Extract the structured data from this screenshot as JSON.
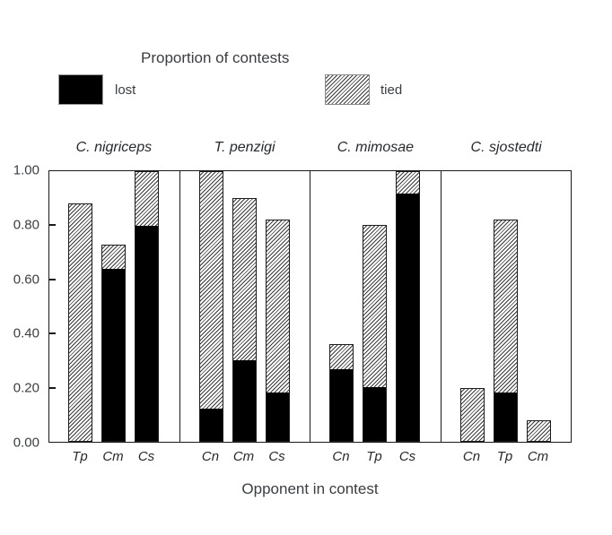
{
  "chart_data": {
    "type": "bar",
    "stacked": true,
    "title": "Proportion of contests",
    "xlabel": "Opponent in contest",
    "ylabel": "Proportion of contests",
    "ylim": [
      0,
      1
    ],
    "yticks": [
      0.0,
      0.2,
      0.4,
      0.6,
      0.8,
      1.0
    ],
    "ytick_labels": [
      "0.00",
      "0.20",
      "0.40",
      "0.60",
      "0.80",
      "1.00"
    ],
    "grid": false,
    "legend_position": "top",
    "legend": [
      {
        "label": "lost",
        "style": "solid",
        "color": "#000000"
      },
      {
        "label": "tied",
        "style": "diagonal-hatch",
        "color": "#ffffff"
      }
    ],
    "panels": [
      {
        "title": "C. nigriceps",
        "bars": [
          {
            "opponent": "Tp",
            "lost": 0.0,
            "tied": 0.88
          },
          {
            "opponent": "Cm",
            "lost": 0.64,
            "tied": 0.09
          },
          {
            "opponent": "Cs",
            "lost": 0.8,
            "tied": 0.2
          }
        ]
      },
      {
        "title": "T. penzigi",
        "bars": [
          {
            "opponent": "Cn",
            "lost": 0.12,
            "tied": 0.88
          },
          {
            "opponent": "Cm",
            "lost": 0.3,
            "tied": 0.6
          },
          {
            "opponent": "Cs",
            "lost": 0.18,
            "tied": 0.64
          }
        ]
      },
      {
        "title": "C. mimosae",
        "bars": [
          {
            "opponent": "Cn",
            "lost": 0.27,
            "tied": 0.09
          },
          {
            "opponent": "Tp",
            "lost": 0.2,
            "tied": 0.6
          },
          {
            "opponent": "Cs",
            "lost": 0.92,
            "tied": 0.08
          }
        ]
      },
      {
        "title": "C. sjostedti",
        "bars": [
          {
            "opponent": "Cn",
            "lost": 0.0,
            "tied": 0.2
          },
          {
            "opponent": "Tp",
            "lost": 0.18,
            "tied": 0.64
          },
          {
            "opponent": "Cm",
            "lost": 0.0,
            "tied": 0.08
          }
        ]
      }
    ]
  },
  "colors": {
    "lost_fill": "#000000",
    "hatch_line": "#3a3a3a",
    "axis": "#1a1a1a",
    "text": "#3a3d42"
  }
}
